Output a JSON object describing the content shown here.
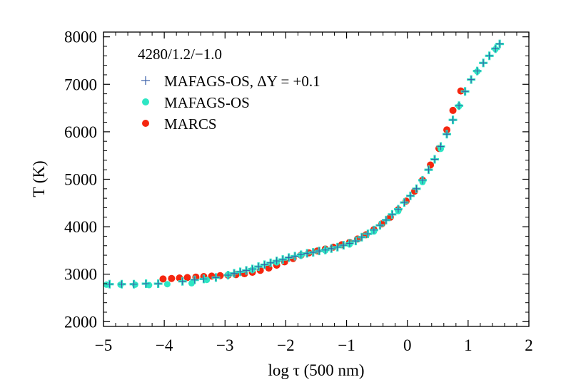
{
  "chart_data": {
    "type": "scatter",
    "title": "",
    "annotation": "4280/1.2/−1.0",
    "xlabel": "log τ  (500 nm)",
    "ylabel": "T (K)",
    "xlim": [
      -5,
      2
    ],
    "ylim": [
      1900,
      8100
    ],
    "xticks": [
      -5,
      -4,
      -3,
      -2,
      -1,
      0,
      1,
      2
    ],
    "xtick_labels": [
      "−5",
      "−4",
      "−3",
      "−2",
      "−1",
      "0",
      "1",
      "2"
    ],
    "yticks": [
      2000,
      3000,
      4000,
      5000,
      6000,
      7000,
      8000
    ],
    "ytick_labels": [
      "2000",
      "3000",
      "4000",
      "5000",
      "6000",
      "7000",
      "8000"
    ],
    "grid": false,
    "legend_position": "top-left",
    "series": [
      {
        "name": "MAFAGS-OS, ΔY = +0.1",
        "marker": "plus",
        "color": "#3a5fa8",
        "points": [
          [
            -4.9,
            2790
          ],
          [
            -4.7,
            2790
          ],
          [
            -4.5,
            2790
          ],
          [
            -4.3,
            2800
          ],
          [
            -4.1,
            2800
          ],
          [
            -3.7,
            2850
          ],
          [
            -3.5,
            2880
          ],
          [
            -3.35,
            2900
          ],
          [
            -3.15,
            2930
          ],
          [
            -2.95,
            2980
          ],
          [
            -2.85,
            3020
          ],
          [
            -2.75,
            3050
          ],
          [
            -2.65,
            3080
          ],
          [
            -2.55,
            3110
          ],
          [
            -2.45,
            3160
          ],
          [
            -2.35,
            3200
          ],
          [
            -2.25,
            3240
          ],
          [
            -2.15,
            3280
          ],
          [
            -2.05,
            3310
          ],
          [
            -1.95,
            3350
          ],
          [
            -1.85,
            3380
          ],
          [
            -1.75,
            3410
          ],
          [
            -1.65,
            3440
          ],
          [
            -1.55,
            3460
          ],
          [
            -1.45,
            3490
          ],
          [
            -1.35,
            3510
          ],
          [
            -1.25,
            3540
          ],
          [
            -1.15,
            3570
          ],
          [
            -1.05,
            3610
          ],
          [
            -0.95,
            3650
          ],
          [
            -0.85,
            3700
          ],
          [
            -0.75,
            3780
          ],
          [
            -0.65,
            3850
          ],
          [
            -0.55,
            3930
          ],
          [
            -0.45,
            4030
          ],
          [
            -0.35,
            4140
          ],
          [
            -0.25,
            4260
          ],
          [
            -0.15,
            4370
          ],
          [
            -0.05,
            4510
          ],
          [
            0.05,
            4650
          ],
          [
            0.15,
            4800
          ],
          [
            0.25,
            4980
          ],
          [
            0.35,
            5200
          ],
          [
            0.45,
            5420
          ],
          [
            0.55,
            5690
          ],
          [
            0.65,
            5950
          ],
          [
            0.75,
            6250
          ],
          [
            0.85,
            6550
          ],
          [
            0.95,
            6850
          ],
          [
            1.05,
            7100
          ],
          [
            1.15,
            7280
          ],
          [
            1.25,
            7450
          ],
          [
            1.35,
            7600
          ],
          [
            1.45,
            7750
          ],
          [
            1.52,
            7850
          ]
        ]
      },
      {
        "name": "MAFAGS-OS",
        "marker": "circle",
        "color": "#2ee6c4",
        "points": [
          [
            -4.95,
            2780
          ],
          [
            -4.72,
            2780
          ],
          [
            -4.48,
            2780
          ],
          [
            -4.25,
            2770
          ],
          [
            -3.95,
            2790
          ],
          [
            -3.55,
            2810
          ],
          [
            -3.3,
            2880
          ],
          [
            -2.95,
            2990
          ],
          [
            -2.55,
            3090
          ],
          [
            -2.15,
            3250
          ],
          [
            -1.75,
            3400
          ],
          [
            -1.35,
            3500
          ],
          [
            -0.95,
            3630
          ],
          [
            -0.55,
            3900
          ],
          [
            -0.15,
            4330
          ],
          [
            0.25,
            4940
          ],
          [
            0.55,
            5640
          ],
          [
            0.85,
            6540
          ],
          [
            1.15,
            7270
          ],
          [
            1.45,
            7740
          ]
        ]
      },
      {
        "name": "MARCS",
        "marker": "circle",
        "color": "#f5260f",
        "points": [
          [
            -4.02,
            2900
          ],
          [
            -3.88,
            2910
          ],
          [
            -3.75,
            2920
          ],
          [
            -3.62,
            2930
          ],
          [
            -3.48,
            2940
          ],
          [
            -3.35,
            2950
          ],
          [
            -3.22,
            2960
          ],
          [
            -3.08,
            2970
          ],
          [
            -2.95,
            2980
          ],
          [
            -2.82,
            2990
          ],
          [
            -2.68,
            3010
          ],
          [
            -2.55,
            3040
          ],
          [
            -2.42,
            3080
          ],
          [
            -2.28,
            3130
          ],
          [
            -2.15,
            3190
          ],
          [
            -2.02,
            3260
          ],
          [
            -1.88,
            3330
          ],
          [
            -1.75,
            3400
          ],
          [
            -1.62,
            3450
          ],
          [
            -1.48,
            3490
          ],
          [
            -1.35,
            3530
          ],
          [
            -1.22,
            3570
          ],
          [
            -1.08,
            3620
          ],
          [
            -0.95,
            3670
          ],
          [
            -0.82,
            3740
          ],
          [
            -0.68,
            3830
          ],
          [
            -0.55,
            3940
          ],
          [
            -0.42,
            4060
          ],
          [
            -0.28,
            4200
          ],
          [
            -0.15,
            4360
          ],
          [
            -0.02,
            4540
          ],
          [
            0.12,
            4750
          ],
          [
            0.25,
            4980
          ],
          [
            0.38,
            5300
          ],
          [
            0.52,
            5650
          ],
          [
            0.65,
            6040
          ],
          [
            0.75,
            6450
          ],
          [
            0.88,
            6860
          ]
        ]
      }
    ]
  }
}
